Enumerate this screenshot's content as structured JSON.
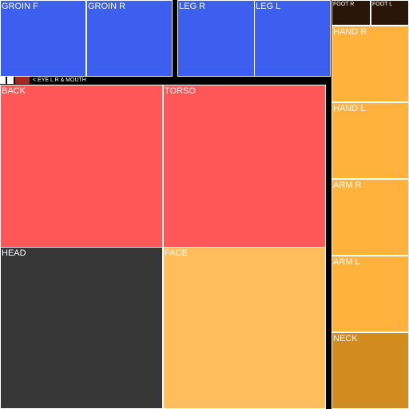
{
  "chart_data": {
    "type": "treemap",
    "cells": [
      {
        "id": "groin-f",
        "label": "GROIN F",
        "color": "#3d5ff0",
        "size": "large"
      },
      {
        "id": "groin-r",
        "label": "GROIN R",
        "color": "#3d5ff0",
        "size": "large"
      },
      {
        "id": "leg-r",
        "label": "LEG R",
        "color": "#3d5ff0",
        "size": "large"
      },
      {
        "id": "leg-l",
        "label": "LEG L",
        "color": "#3d5ff0",
        "size": "large"
      },
      {
        "id": "foot-r",
        "label": "FOOT R",
        "color": "#2a1608",
        "size": "tiny"
      },
      {
        "id": "foot-l",
        "label": "FOOT L",
        "color": "#2a1608",
        "size": "tiny"
      },
      {
        "id": "hand-r",
        "label": "HAND R",
        "color": "#ffb33d",
        "size": "large"
      },
      {
        "id": "hand-l",
        "label": "HAND L",
        "color": "#ffb33d",
        "size": "large"
      },
      {
        "id": "arm-r",
        "label": "ARM R",
        "color": "#ffb33d",
        "size": "large"
      },
      {
        "id": "arm-l",
        "label": "ARM L",
        "color": "#ffb33d",
        "size": "large"
      },
      {
        "id": "neck",
        "label": "NECK",
        "color": "#d08c1e",
        "size": "large"
      },
      {
        "id": "back",
        "label": "BACK",
        "color": "#ff5757",
        "size": "large"
      },
      {
        "id": "torso",
        "label": "TORSO",
        "color": "#ff5757",
        "size": "large"
      },
      {
        "id": "head",
        "label": "HEAD",
        "color": "#363636",
        "size": "large"
      },
      {
        "id": "face",
        "label": "FACE",
        "color": "#ffbd5c",
        "size": "large"
      }
    ],
    "small_cells": [
      {
        "id": "eye-l",
        "color": "#ffffff"
      },
      {
        "id": "eye-r",
        "color": "#ffffff"
      },
      {
        "id": "mouth",
        "color": "#a0281e"
      }
    ],
    "annotation": "< EYE L R & MOUTH"
  }
}
